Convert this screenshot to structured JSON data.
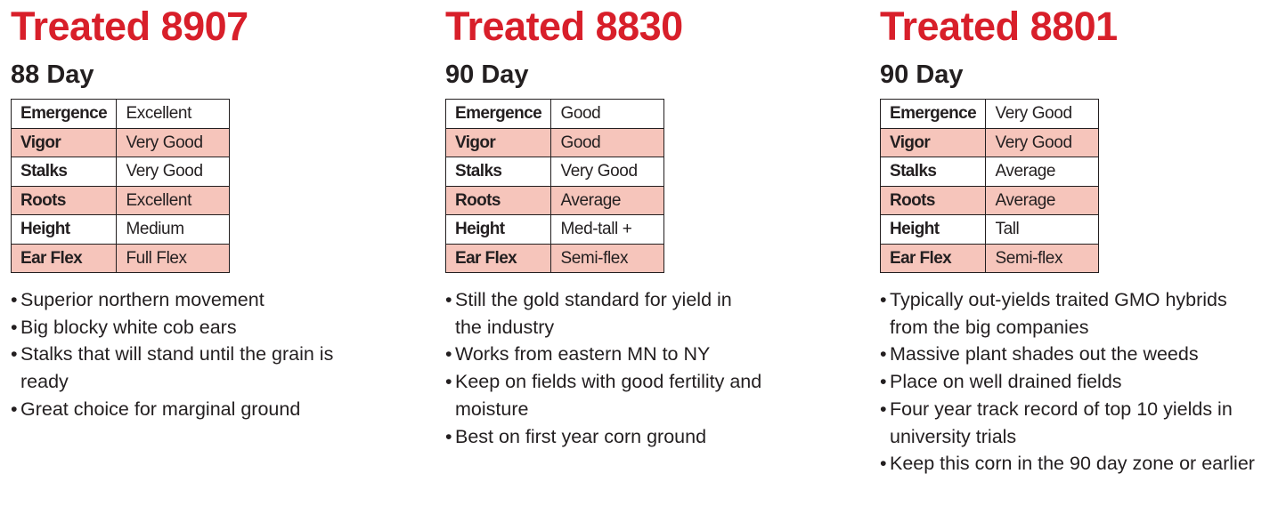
{
  "products": [
    {
      "title": "Treated 8907",
      "maturity": "88 Day",
      "traits": [
        {
          "name": "Emergence",
          "value": "Excellent"
        },
        {
          "name": "Vigor",
          "value": "Very Good"
        },
        {
          "name": "Stalks",
          "value": "Very Good"
        },
        {
          "name": "Roots",
          "value": "Excellent"
        },
        {
          "name": "Height",
          "value": "Medium"
        },
        {
          "name": "Ear Flex",
          "value": "Full Flex"
        }
      ],
      "bullets": [
        "Superior northern movement",
        "Big blocky white cob ears",
        "Stalks that will stand until the grain is ready",
        "Great choice for marginal ground"
      ]
    },
    {
      "title": "Treated 8830",
      "maturity": "90 Day",
      "traits": [
        {
          "name": "Emergence",
          "value": "Good"
        },
        {
          "name": "Vigor",
          "value": "Good"
        },
        {
          "name": "Stalks",
          "value": "Very Good"
        },
        {
          "name": "Roots",
          "value": "Average"
        },
        {
          "name": "Height",
          "value": "Med-tall +"
        },
        {
          "name": "Ear Flex",
          "value": "Semi-flex"
        }
      ],
      "bullets": [
        "Still the gold standard for yield in the industry",
        "Works from eastern MN to NY",
        "Keep on fields with good fertility and moisture",
        "Best on first year corn ground"
      ]
    },
    {
      "title": "Treated 8801",
      "maturity": "90 Day",
      "traits": [
        {
          "name": "Emergence",
          "value": "Very Good"
        },
        {
          "name": "Vigor",
          "value": "Very Good"
        },
        {
          "name": "Stalks",
          "value": "Average"
        },
        {
          "name": "Roots",
          "value": "Average"
        },
        {
          "name": "Height",
          "value": "Tall"
        },
        {
          "name": "Ear Flex",
          "value": "Semi-flex"
        }
      ],
      "bullets": [
        "Typically out-yields traited GMO hybrids from the big companies",
        "Massive plant shades out the weeds",
        "Place on well drained fields",
        "Four year track record of top 10 yields in university trials",
        "Keep this corn in the 90 day zone or earlier"
      ]
    }
  ],
  "colors": {
    "title_red": "#d81f2a",
    "row_shade": "#f6c5bb",
    "text": "#231f20"
  }
}
